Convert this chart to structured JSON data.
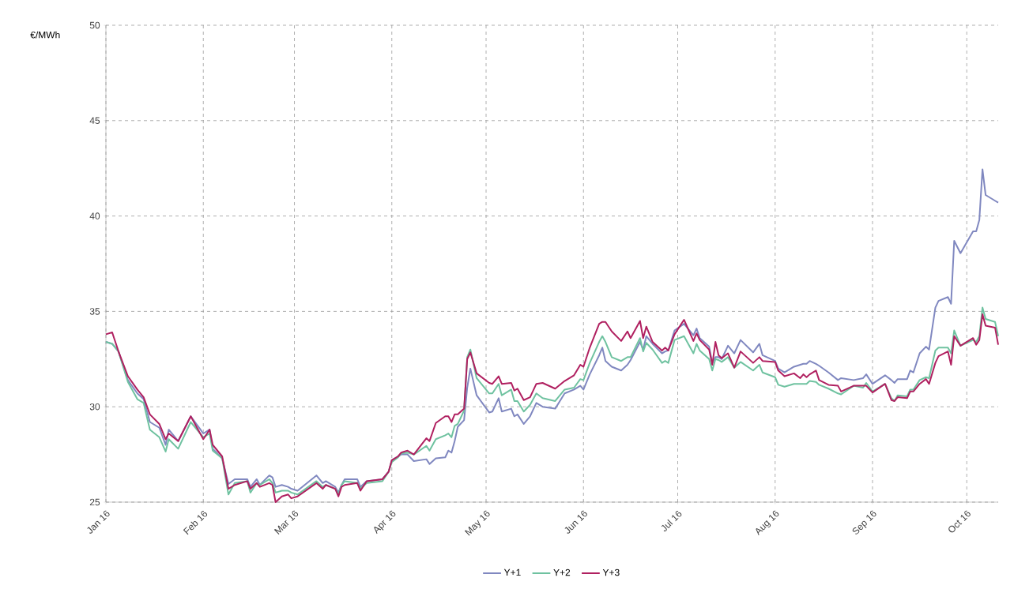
{
  "chart_data": {
    "type": "line",
    "ylabel": "€/MWh",
    "x": [
      "2016-01-01",
      "2016-01-03",
      "2016-01-05",
      "2016-01-08",
      "2016-01-11",
      "2016-01-13",
      "2016-01-15",
      "2016-01-18",
      "2016-01-20",
      "2016-01-21",
      "2016-01-24",
      "2016-01-28",
      "2016-02-01",
      "2016-02-03",
      "2016-02-04",
      "2016-02-07",
      "2016-02-09",
      "2016-02-11",
      "2016-02-15",
      "2016-02-16",
      "2016-02-18",
      "2016-02-19",
      "2016-02-22",
      "2016-02-23",
      "2016-02-24",
      "2016-02-26",
      "2016-02-28",
      "2016-02-29",
      "2016-03-02",
      "2016-03-08",
      "2016-03-10",
      "2016-03-11",
      "2016-03-14",
      "2016-03-15",
      "2016-03-16",
      "2016-03-17",
      "2016-03-21",
      "2016-03-22",
      "2016-03-24",
      "2016-03-29",
      "2016-03-31",
      "2016-04-01",
      "2016-04-03",
      "2016-04-04",
      "2016-04-06",
      "2016-04-08",
      "2016-04-12",
      "2016-04-13",
      "2016-04-15",
      "2016-04-18",
      "2016-04-19",
      "2016-04-20",
      "2016-04-21",
      "2016-04-22",
      "2016-04-24",
      "2016-04-25",
      "2016-04-26",
      "2016-04-28",
      "2016-05-02",
      "2016-05-03",
      "2016-05-05",
      "2016-05-06",
      "2016-05-09",
      "2016-05-10",
      "2016-05-11",
      "2016-05-13",
      "2016-05-15",
      "2016-05-17",
      "2016-05-19",
      "2016-05-23",
      "2016-05-26",
      "2016-05-29",
      "2016-05-31",
      "2016-06-01",
      "2016-06-03",
      "2016-06-06",
      "2016-06-07",
      "2016-06-08",
      "2016-06-10",
      "2016-06-13",
      "2016-06-15",
      "2016-06-16",
      "2016-06-19",
      "2016-06-20",
      "2016-06-21",
      "2016-06-23",
      "2016-06-26",
      "2016-06-27",
      "2016-06-28",
      "2016-06-30",
      "2016-07-03",
      "2016-07-06",
      "2016-07-07",
      "2016-07-08",
      "2016-07-11",
      "2016-07-12",
      "2016-07-13",
      "2016-07-14",
      "2016-07-15",
      "2016-07-17",
      "2016-07-19",
      "2016-07-21",
      "2016-07-25",
      "2016-07-27",
      "2016-07-28",
      "2016-08-01",
      "2016-08-02",
      "2016-08-04",
      "2016-08-07",
      "2016-08-09",
      "2016-08-10",
      "2016-08-11",
      "2016-08-12",
      "2016-08-14",
      "2016-08-15",
      "2016-08-18",
      "2016-08-21",
      "2016-08-22",
      "2016-08-26",
      "2016-08-29",
      "2016-08-30",
      "2016-09-01",
      "2016-09-05",
      "2016-09-07",
      "2016-09-08",
      "2016-09-09",
      "2016-09-12",
      "2016-09-13",
      "2016-09-14",
      "2016-09-16",
      "2016-09-18",
      "2016-09-19",
      "2016-09-21",
      "2016-09-22",
      "2016-09-25",
      "2016-09-26",
      "2016-09-27",
      "2016-09-29",
      "2016-10-03",
      "2016-10-04",
      "2016-10-05",
      "2016-10-06",
      "2016-10-07",
      "2016-10-10",
      "2016-10-11"
    ],
    "series": [
      {
        "name": "Y+1",
        "color": "#8088c0",
        "values": [
          33.4,
          33.3,
          32.9,
          31.4,
          30.7,
          30.4,
          29.2,
          28.9,
          28.0,
          28.8,
          28.2,
          29.5,
          28.6,
          28.8,
          27.8,
          27.3,
          25.95,
          26.2,
          26.2,
          25.8,
          26.2,
          25.9,
          26.4,
          26.3,
          25.8,
          25.9,
          25.8,
          25.7,
          25.6,
          26.4,
          26.0,
          26.1,
          25.8,
          25.5,
          25.9,
          26.2,
          26.2,
          25.8,
          26.1,
          26.2,
          26.6,
          27.2,
          27.4,
          27.5,
          27.5,
          27.15,
          27.25,
          27.0,
          27.3,
          27.35,
          27.7,
          27.6,
          28.2,
          28.95,
          29.3,
          31.0,
          32.0,
          30.6,
          29.7,
          29.75,
          30.45,
          29.75,
          29.9,
          29.5,
          29.6,
          29.1,
          29.5,
          30.2,
          30.0,
          29.9,
          30.7,
          30.9,
          31.1,
          30.9,
          31.7,
          32.7,
          33.1,
          32.4,
          32.1,
          31.9,
          32.2,
          32.45,
          33.4,
          33.0,
          33.7,
          33.3,
          32.8,
          32.9,
          32.95,
          34.0,
          34.35,
          33.75,
          34.1,
          33.6,
          33.15,
          32.3,
          32.6,
          32.6,
          32.5,
          33.2,
          32.8,
          33.5,
          32.85,
          33.3,
          32.7,
          32.4,
          32.0,
          31.8,
          32.1,
          32.2,
          32.25,
          32.25,
          32.4,
          32.25,
          32.15,
          31.8,
          31.4,
          31.5,
          31.4,
          31.5,
          31.7,
          31.2,
          31.65,
          31.4,
          31.25,
          31.45,
          31.45,
          31.9,
          31.8,
          32.8,
          33.15,
          33.0,
          35.2,
          35.55,
          35.75,
          35.4,
          38.7,
          38.05,
          39.2,
          39.2,
          39.8,
          42.45,
          41.1,
          40.8,
          40.7
        ]
      },
      {
        "name": "Y+2",
        "color": "#6fc2a0",
        "values": [
          33.4,
          33.3,
          32.9,
          31.3,
          30.4,
          30.2,
          28.8,
          28.4,
          27.65,
          28.3,
          27.8,
          29.2,
          28.4,
          28.6,
          27.7,
          27.3,
          25.4,
          26.0,
          26.1,
          25.5,
          26.0,
          25.9,
          26.2,
          26.0,
          25.5,
          25.6,
          25.6,
          25.5,
          25.4,
          26.1,
          25.8,
          25.9,
          25.7,
          25.4,
          25.9,
          26.1,
          26.0,
          25.7,
          26.0,
          26.1,
          26.6,
          27.1,
          27.35,
          27.55,
          27.6,
          27.5,
          27.95,
          27.7,
          28.3,
          28.5,
          28.6,
          28.4,
          29.0,
          29.1,
          29.8,
          32.6,
          33.0,
          31.5,
          30.7,
          30.7,
          31.2,
          30.6,
          30.9,
          30.3,
          30.3,
          29.75,
          30.1,
          30.7,
          30.45,
          30.3,
          30.9,
          31.0,
          31.45,
          31.4,
          32.3,
          33.4,
          33.7,
          33.4,
          32.6,
          32.4,
          32.6,
          32.6,
          33.6,
          32.9,
          33.35,
          33.0,
          32.3,
          32.4,
          32.3,
          33.5,
          33.7,
          32.8,
          33.3,
          32.95,
          32.5,
          31.9,
          32.5,
          32.45,
          32.35,
          32.6,
          32.05,
          32.35,
          31.9,
          32.2,
          31.8,
          31.55,
          31.15,
          31.05,
          31.2,
          31.2,
          31.2,
          31.2,
          31.35,
          31.3,
          31.15,
          30.95,
          30.7,
          30.65,
          31.1,
          31.0,
          31.25,
          30.8,
          31.2,
          30.45,
          30.3,
          30.6,
          30.55,
          30.9,
          30.9,
          31.4,
          31.55,
          31.5,
          32.95,
          33.1,
          33.1,
          32.8,
          34.0,
          33.2,
          33.5,
          33.4,
          33.7,
          35.2,
          34.6,
          34.45,
          33.7
        ]
      },
      {
        "name": "Y+3",
        "color": "#b02060",
        "values": [
          33.8,
          33.9,
          32.9,
          31.6,
          30.9,
          30.5,
          29.6,
          29.1,
          28.3,
          28.6,
          28.2,
          29.5,
          28.3,
          28.8,
          28.0,
          27.4,
          25.7,
          25.9,
          26.1,
          25.7,
          26.0,
          25.8,
          26.0,
          25.9,
          25.0,
          25.3,
          25.4,
          25.2,
          25.3,
          26.0,
          25.7,
          25.9,
          25.7,
          25.3,
          25.8,
          25.9,
          26.0,
          25.6,
          26.1,
          26.2,
          26.6,
          27.2,
          27.4,
          27.6,
          27.7,
          27.5,
          28.35,
          28.2,
          29.15,
          29.5,
          29.5,
          29.2,
          29.6,
          29.6,
          29.9,
          32.5,
          32.85,
          31.75,
          31.25,
          31.2,
          31.6,
          31.2,
          31.25,
          30.85,
          30.95,
          30.35,
          30.5,
          31.2,
          31.25,
          30.95,
          31.35,
          31.65,
          32.2,
          32.1,
          33.1,
          34.35,
          34.45,
          34.45,
          33.95,
          33.45,
          33.95,
          33.6,
          34.5,
          33.6,
          34.2,
          33.4,
          32.95,
          33.1,
          32.95,
          33.8,
          34.56,
          33.45,
          33.85,
          33.5,
          33.0,
          32.2,
          33.4,
          32.7,
          32.55,
          32.8,
          32.05,
          32.9,
          32.3,
          32.6,
          32.4,
          32.35,
          31.9,
          31.6,
          31.75,
          31.5,
          31.7,
          31.55,
          31.7,
          31.9,
          31.4,
          31.15,
          31.1,
          30.8,
          31.1,
          31.1,
          31.1,
          30.75,
          31.2,
          30.35,
          30.3,
          30.5,
          30.45,
          30.8,
          30.8,
          31.2,
          31.45,
          31.2,
          32.3,
          32.65,
          32.9,
          32.2,
          33.7,
          33.2,
          33.6,
          33.25,
          33.5,
          34.85,
          34.25,
          34.15,
          33.25
        ]
      }
    ],
    "xlim": [
      "2016-01-01",
      "2016-10-11"
    ],
    "xticks": [
      {
        "value": "2016-01-01",
        "label": "Jan 16"
      },
      {
        "value": "2016-02-01",
        "label": "Feb 16"
      },
      {
        "value": "2016-03-01",
        "label": "Mar 16"
      },
      {
        "value": "2016-04-01",
        "label": "Apr 16"
      },
      {
        "value": "2016-05-01",
        "label": "May 16"
      },
      {
        "value": "2016-06-01",
        "label": "Jun 16"
      },
      {
        "value": "2016-07-01",
        "label": "Jul 16"
      },
      {
        "value": "2016-08-01",
        "label": "Aug 16"
      },
      {
        "value": "2016-09-01",
        "label": "Sep 16"
      },
      {
        "value": "2016-10-01",
        "label": "Oct 16"
      }
    ],
    "ylim": [
      25,
      50
    ],
    "yticks": [
      25,
      30,
      35,
      40,
      45,
      50
    ],
    "grid": true,
    "legend": "bottom",
    "marker": "none",
    "line_style": "solid"
  }
}
